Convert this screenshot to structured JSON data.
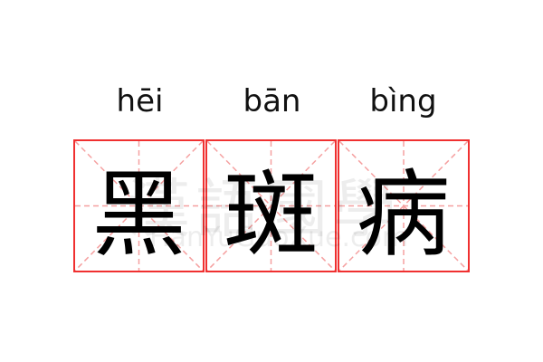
{
  "words": [
    {
      "pinyin": "hēi",
      "char": "黑"
    },
    {
      "pinyin": "bān",
      "char": "斑"
    },
    {
      "pinyin": "bìng",
      "char": "病"
    }
  ],
  "watermark": {
    "chinese": "漢語國學",
    "latin": "HanYuGuoXue.com"
  },
  "colors": {
    "grid_border": "#f03030",
    "guide_lines": "#f5a0a0"
  }
}
